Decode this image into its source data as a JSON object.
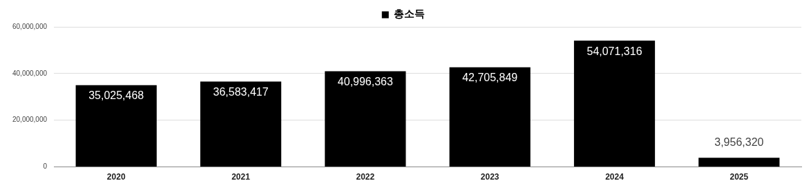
{
  "chart_data": {
    "type": "bar",
    "categories": [
      "2020",
      "2021",
      "2022",
      "2023",
      "2024",
      "2025"
    ],
    "series": [
      {
        "name": "총소득",
        "color": "#000000",
        "values": [
          35025468,
          36583417,
          40996363,
          42705849,
          54071316,
          3956320
        ],
        "value_labels": [
          "35,025,468",
          "36,583,417",
          "40,996,363",
          "42,705,849",
          "54,071,316",
          "3,956,320"
        ]
      }
    ],
    "ylim": [
      0,
      60000000
    ],
    "yticks": [
      {
        "value": 0,
        "label": "0"
      },
      {
        "value": 20000000,
        "label": "20,000,000"
      },
      {
        "value": 40000000,
        "label": "40,000,000"
      },
      {
        "value": 60000000,
        "label": "60,000,000"
      }
    ],
    "grid": "y",
    "legend": "top"
  }
}
